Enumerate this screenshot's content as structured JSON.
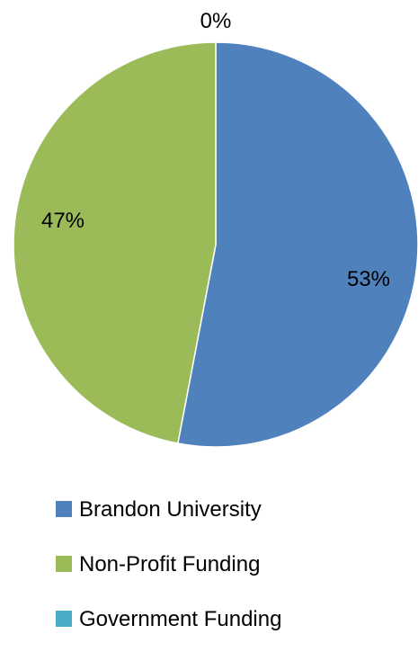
{
  "chart_data": {
    "type": "pie",
    "title": "",
    "slices": [
      {
        "label": "Brandon University",
        "value": 53,
        "display": "53%",
        "color": "#4F81BD"
      },
      {
        "label": "Non-Profit Funding",
        "value": 47,
        "display": "47%",
        "color": "#9BBB59"
      },
      {
        "label": "Government Funding",
        "value": 0,
        "display": "0%",
        "color": "#4BACC6"
      }
    ],
    "legend_position": "bottom"
  }
}
